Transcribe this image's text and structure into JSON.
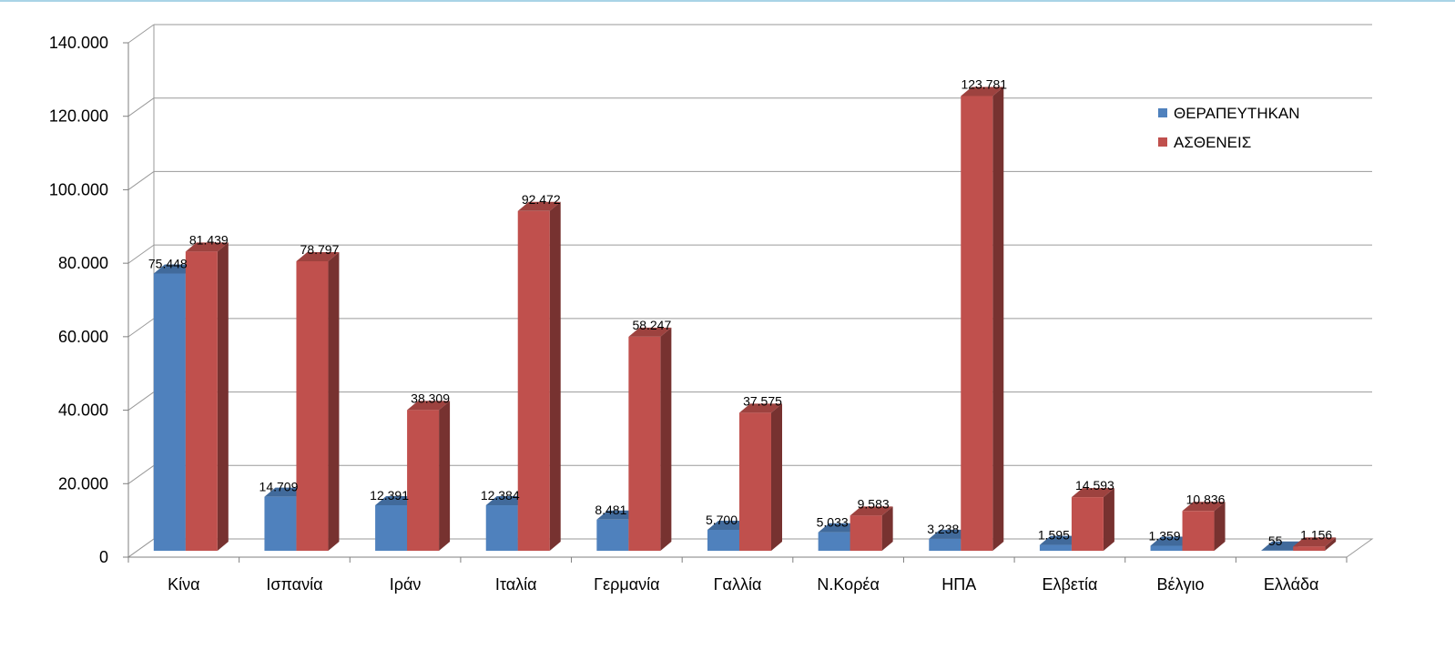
{
  "chart_data": {
    "type": "bar",
    "style": "3d-clustered-column",
    "categories": [
      "Κίνα",
      "Ισπανία",
      "Ιράν",
      "Ιταλία",
      "Γερμανία",
      "Γαλλία",
      "Ν.Κορέα",
      "ΗΠΑ",
      "Ελβετία",
      "Βέλγιο",
      "Ελλάδα"
    ],
    "series": [
      {
        "name": "ΘΕΡΑΠΕΥΤΗΚΑΝ",
        "color": "#4f81bd",
        "values": [
          75448,
          14709,
          12391,
          12384,
          8481,
          5700,
          5033,
          3238,
          1595,
          1359,
          55
        ],
        "labels": [
          "75.448",
          "14.709",
          "12.391",
          "12.384",
          "8.481",
          "5.700",
          "5.033",
          "3.238",
          "1.595",
          "1.359",
          "55"
        ]
      },
      {
        "name": "ΑΣΘΕΝΕΙΣ",
        "color": "#c0504d",
        "values": [
          81439,
          78797,
          38309,
          92472,
          58247,
          37575,
          9583,
          123781,
          14593,
          10836,
          1156
        ],
        "labels": [
          "81.439",
          "78.797",
          "38.309",
          "92.472",
          "58.247",
          "37.575",
          "9.583",
          "123.781",
          "14.593",
          "10.836",
          "1.156"
        ]
      }
    ],
    "yticks": [
      0,
      20000,
      40000,
      60000,
      80000,
      100000,
      120000,
      140000
    ],
    "ytick_labels": [
      "0",
      "20.000",
      "40.000",
      "60.000",
      "80.000",
      "100.000",
      "120.000",
      "140.000"
    ],
    "ylim": [
      0,
      140000
    ],
    "title": "",
    "xlabel": "",
    "ylabel": "",
    "grid": true,
    "legend_position": "top-right"
  }
}
